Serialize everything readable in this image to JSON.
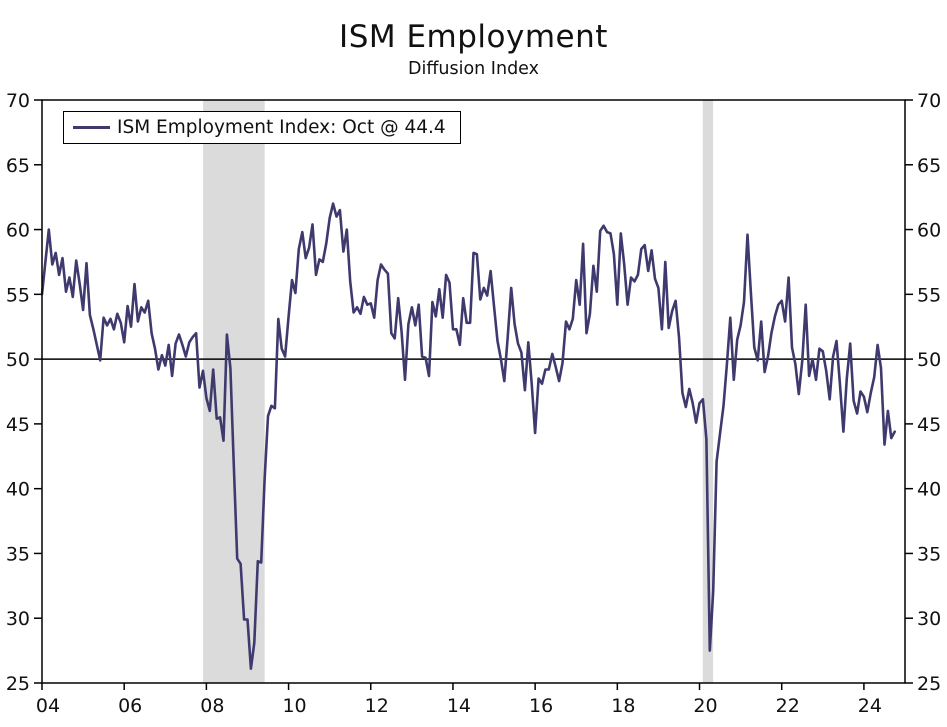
{
  "page": {
    "title": "ISM Employment",
    "subtitle": "Diffusion Index"
  },
  "legend": {
    "label": "ISM Employment Index: Oct @ 44.4"
  },
  "chart_data": {
    "type": "line",
    "title": "ISM Employment",
    "subtitle": "Diffusion Index",
    "ylabel": "",
    "xlabel": "",
    "ylim": [
      25,
      70
    ],
    "xlim": [
      2004,
      2025
    ],
    "grid": false,
    "legend_position": "top-left",
    "reference_line": 50,
    "line_color": "#3F3A6E",
    "band_color": "#DBDBDB",
    "axis_color": "#000000",
    "yticks": [
      25,
      30,
      35,
      40,
      45,
      50,
      55,
      60,
      65,
      70
    ],
    "xticks": [
      {
        "year": 2004,
        "label": "04"
      },
      {
        "year": 2006,
        "label": "06"
      },
      {
        "year": 2008,
        "label": "08"
      },
      {
        "year": 2010,
        "label": "10"
      },
      {
        "year": 2012,
        "label": "12"
      },
      {
        "year": 2014,
        "label": "14"
      },
      {
        "year": 2016,
        "label": "16"
      },
      {
        "year": 2018,
        "label": "18"
      },
      {
        "year": 2020,
        "label": "20"
      },
      {
        "year": 2022,
        "label": "22"
      },
      {
        "year": 2024,
        "label": "24"
      }
    ],
    "recession_bands": [
      {
        "start": 2007.92,
        "end": 2009.42
      },
      {
        "start": 2020.08,
        "end": 2020.33
      }
    ],
    "latest": {
      "month": "Oct",
      "value": 44.4
    },
    "series": [
      {
        "name": "ISM Employment Index",
        "frequency": "monthly",
        "start_year": 2004,
        "start_month": 1,
        "values": [
          55.0,
          57.5,
          60.0,
          57.3,
          58.2,
          56.5,
          57.8,
          55.2,
          56.3,
          54.8,
          57.6,
          55.8,
          53.8,
          57.4,
          53.4,
          52.3,
          51.1,
          49.9,
          53.2,
          52.6,
          53.1,
          52.3,
          53.5,
          52.8,
          51.3,
          54.1,
          52.5,
          55.8,
          52.9,
          54.0,
          53.6,
          54.5,
          52.0,
          50.8,
          49.2,
          50.3,
          49.5,
          51.1,
          48.7,
          51.2,
          51.9,
          51.1,
          50.2,
          51.3,
          51.7,
          52.0,
          47.8,
          49.1,
          47.0,
          46.0,
          49.2,
          45.4,
          45.5,
          43.7,
          51.9,
          49.3,
          41.8,
          34.6,
          34.2,
          29.9,
          29.9,
          26.1,
          28.1,
          34.4,
          34.3,
          40.7,
          45.6,
          46.4,
          46.2,
          53.1,
          50.8,
          50.2,
          53.3,
          56.1,
          55.1,
          58.5,
          59.8,
          57.8,
          58.6,
          60.4,
          56.5,
          57.7,
          57.5,
          58.9,
          60.9,
          62.0,
          61.0,
          61.5,
          58.3,
          60.0,
          56.0,
          53.6,
          54.0,
          53.5,
          54.8,
          54.2,
          54.3,
          53.2,
          56.1,
          57.3,
          56.9,
          56.6,
          52.0,
          51.6,
          54.7,
          52.1,
          48.4,
          52.7,
          54.0,
          52.6,
          54.2,
          50.2,
          50.1,
          48.7,
          54.4,
          53.3,
          55.4,
          53.2,
          56.5,
          55.9,
          52.3,
          52.3,
          51.1,
          54.7,
          52.8,
          52.8,
          58.2,
          58.1,
          54.6,
          55.5,
          54.9,
          56.8,
          54.1,
          51.4,
          50.0,
          48.3,
          51.7,
          55.5,
          52.7,
          51.2,
          50.5,
          47.6,
          51.3,
          48.1,
          44.3,
          48.5,
          48.1,
          49.2,
          49.2,
          50.4,
          49.4,
          48.3,
          49.7,
          52.9,
          52.3,
          53.1,
          56.1,
          54.2,
          58.9,
          52.0,
          53.5,
          57.2,
          55.2,
          59.9,
          60.3,
          59.8,
          59.7,
          58.1,
          54.2,
          59.7,
          57.3,
          54.2,
          56.3,
          56.0,
          56.5,
          58.5,
          58.8,
          56.8,
          58.4,
          56.2,
          55.5,
          52.3,
          57.5,
          52.4,
          53.7,
          54.5,
          51.7,
          47.4,
          46.3,
          47.7,
          46.6,
          45.1,
          46.6,
          46.9,
          43.8,
          27.5,
          32.1,
          42.1,
          44.3,
          46.4,
          49.6,
          53.2,
          48.4,
          51.5,
          52.6,
          54.4,
          59.6,
          55.1,
          50.9,
          49.9,
          52.9,
          49.0,
          50.2,
          52.0,
          53.3,
          54.2,
          54.5,
          52.9,
          56.3,
          50.9,
          49.6,
          47.3,
          49.9,
          54.2,
          48.7,
          50.0,
          48.4,
          50.8,
          50.6,
          49.1,
          46.9,
          50.2,
          51.4,
          48.1,
          44.4,
          48.5,
          51.2,
          46.8,
          45.8,
          47.5,
          47.1,
          45.9,
          47.4,
          48.6,
          51.1,
          49.3,
          43.4,
          46.0,
          43.9,
          44.4
        ]
      }
    ]
  }
}
